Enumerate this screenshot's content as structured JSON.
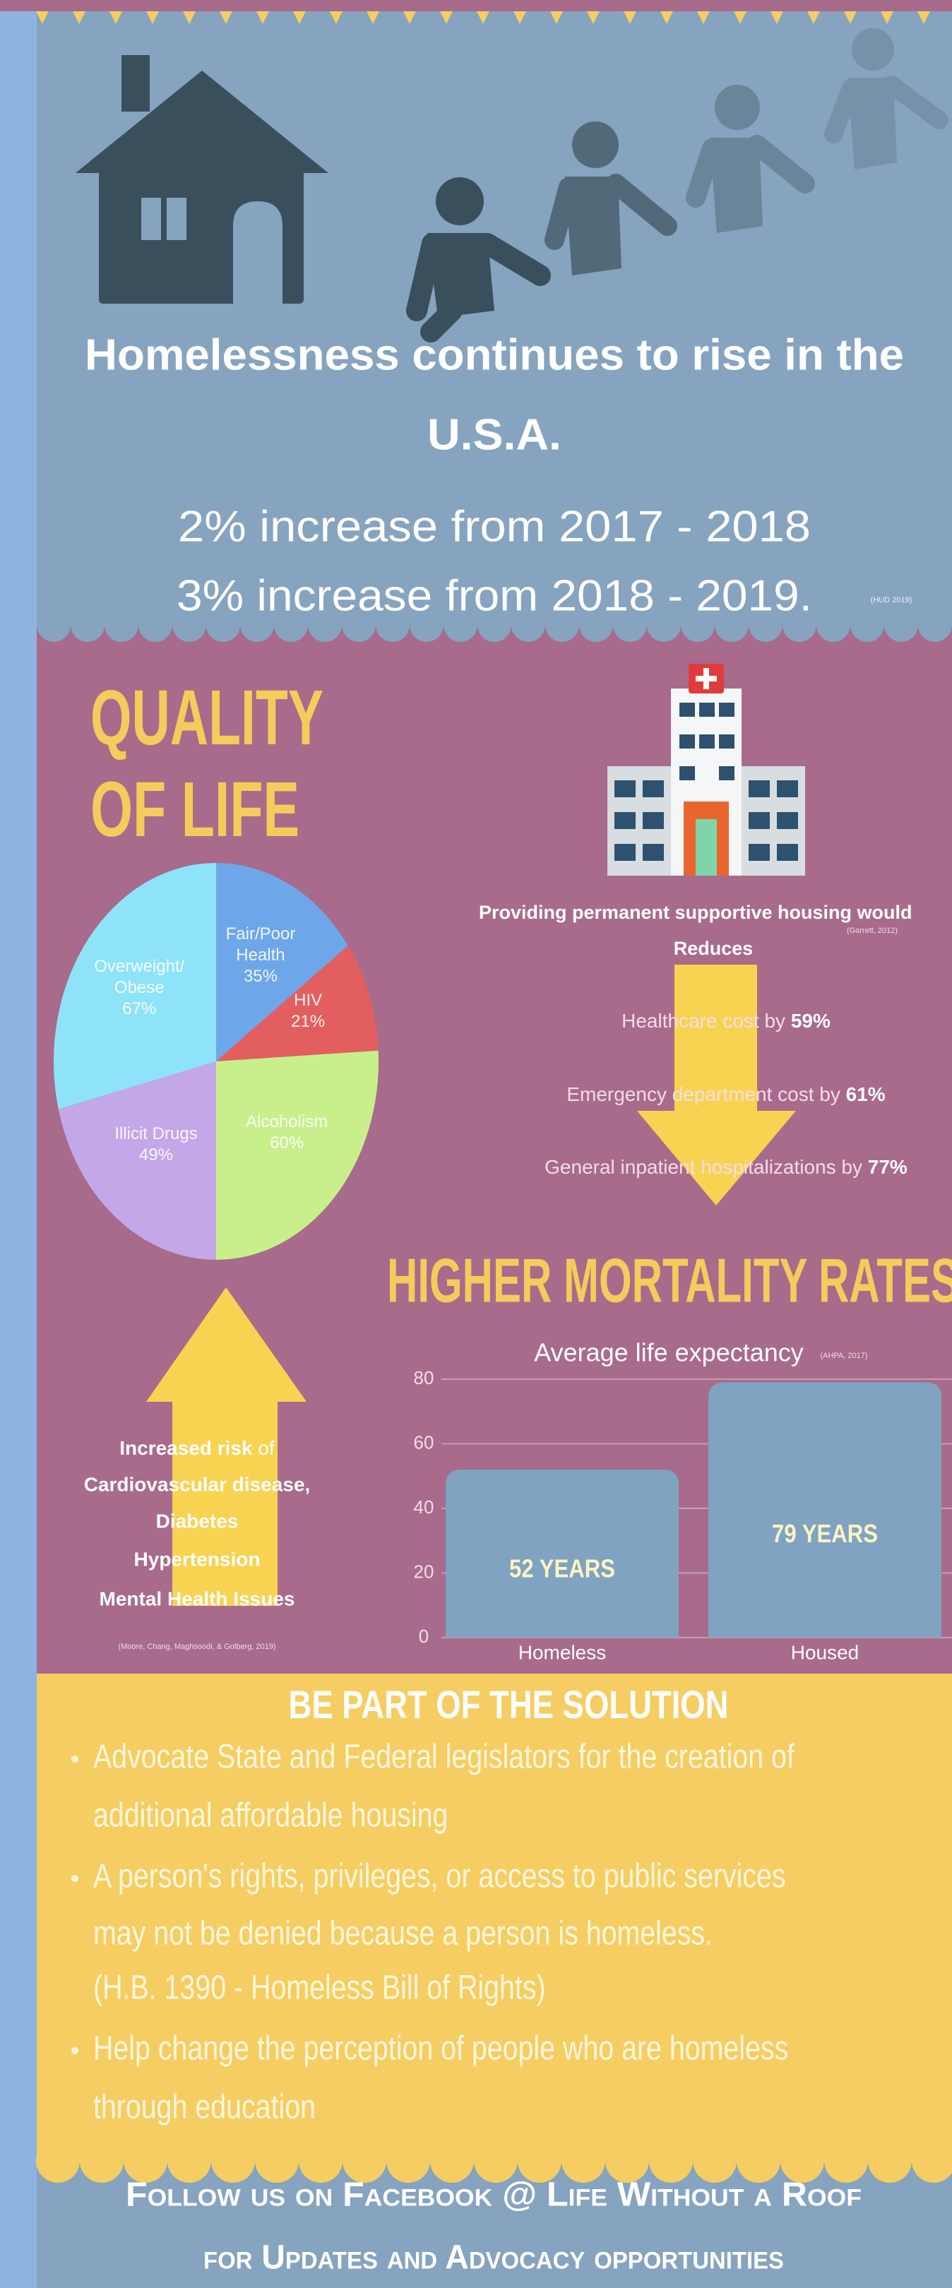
{
  "header": {
    "title_lines": [
      "Homelessness continues to rise in the",
      "U.S.A."
    ],
    "stats": [
      "2% increase from 2017 - 2018",
      "3% increase from 2018 - 2019."
    ],
    "source": "(HUD 2019)"
  },
  "quality_of_life": {
    "title_lines": [
      "QUALITY",
      "OF LIFE"
    ]
  },
  "housing": {
    "heading": "Providing permanent supportive housing would",
    "subheading": "Reduces",
    "source": "(Garrett, 2012)",
    "items": [
      {
        "text": "Healthcare cost by",
        "percent": "59%"
      },
      {
        "text": "Emergency department cost by",
        "percent": "61%"
      },
      {
        "text": "General inpatient hospitalizations by",
        "percent": "77%"
      }
    ]
  },
  "risk": {
    "lead": "Increased risk",
    "lead_rest": "of",
    "items": [
      "Cardiovascular disease,",
      "Diabetes",
      "Hypertension",
      "Mental Health Issues"
    ],
    "source": "(Moore, Chang, Maghsoodi, & Golberg, 2019)"
  },
  "mortality": {
    "heading": "HIGHER MORTALITY RATES"
  },
  "chart_data": [
    {
      "type": "pie",
      "categories": [
        "Fair/Poor Health",
        "HIV",
        "Alcoholism",
        "Illicit Drugs",
        "Overweight/ Obese"
      ],
      "values": [
        35,
        21,
        60,
        49,
        67
      ],
      "value_labels": [
        "35%",
        "21%",
        "60%",
        "49%",
        "67%"
      ],
      "colors": [
        "#6ea6ea",
        "#e35f5f",
        "#c9ef8c",
        "#c4a7e8",
        "#8fe3f8"
      ]
    },
    {
      "type": "bar",
      "title": "Average life expectancy",
      "source": "(AHPA, 2017)",
      "categories": [
        "Homeless",
        "Housed"
      ],
      "values": [
        52,
        79
      ],
      "value_labels": [
        "52 YEARS",
        "79 YEARS"
      ],
      "color": "#80a3c1",
      "ylim": [
        0,
        80
      ],
      "yticks": [
        0,
        20,
        40,
        60,
        80
      ],
      "grid": true
    }
  ],
  "solution": {
    "title": "BE PART OF THE SOLUTION",
    "bullets": [
      [
        "Advocate State and Federal legislators for the creation of",
        "additional affordable housing"
      ],
      [
        "A person's rights, privileges, or access to public services",
        "may not be denied because a person is homeless.",
        " (H.B. 1390 - Homeless Bill of Rights)"
      ],
      [
        "Help change the perception of people who are homeless",
        "through education"
      ]
    ]
  },
  "footer": {
    "lines": [
      "Follow us on Facebook @ Life Without a Roof",
      "for Updates and Advocacy opportunities"
    ]
  }
}
